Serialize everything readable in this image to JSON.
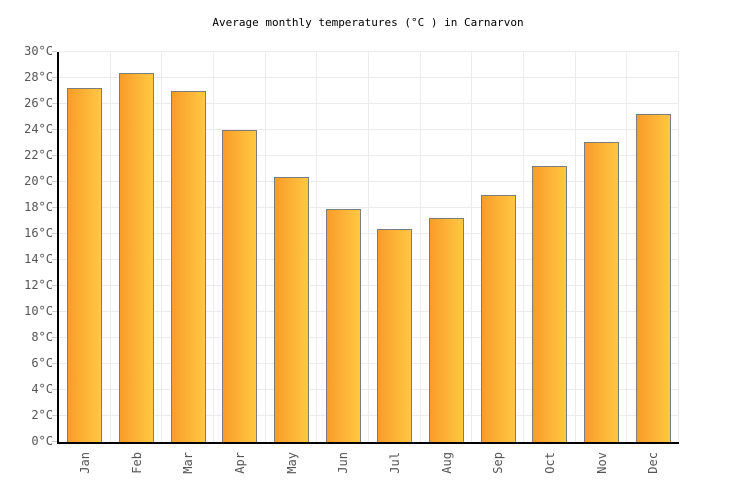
{
  "chart_data": {
    "type": "bar",
    "title": "Average monthly temperatures (°C ) in Carnarvon",
    "categories": [
      "Jan",
      "Feb",
      "Mar",
      "Apr",
      "May",
      "Jun",
      "Jul",
      "Aug",
      "Sep",
      "Oct",
      "Nov",
      "Dec"
    ],
    "values": [
      27.2,
      28.4,
      27.0,
      24.0,
      20.4,
      17.9,
      16.4,
      17.2,
      19.0,
      21.2,
      23.1,
      25.2
    ],
    "xlabel": "",
    "ylabel": "",
    "ylim": [
      0,
      30
    ],
    "ytick_step": 2,
    "ytick_suffix": "°C",
    "grid": true,
    "legend": false,
    "colors": {
      "bar_gradient_left": "#F99C28",
      "bar_gradient_right": "#FFC843",
      "bar_border": "#7C7C7C",
      "grid_line": "#ECECEC",
      "axis_line": "#000000",
      "tick_mark": "#CCCCCC",
      "tick_label": "#555555",
      "title_text": "#000000",
      "background": "#FFFFFF"
    }
  }
}
